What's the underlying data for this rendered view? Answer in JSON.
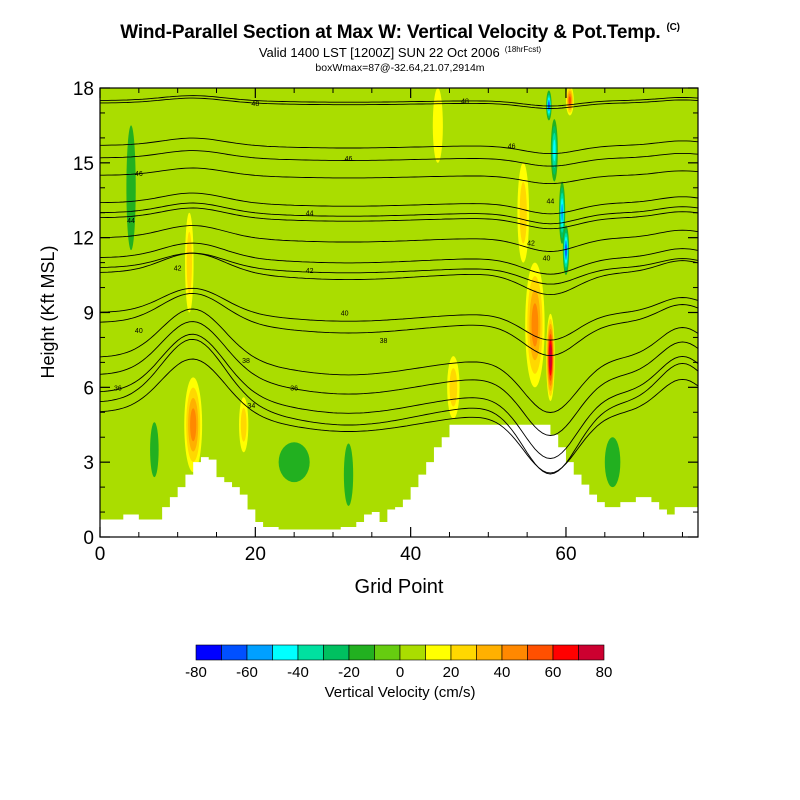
{
  "header": {
    "title": "Wind-Parallel Section at Max W: Vertical Velocity & Pot.Temp.",
    "title_tag": "(C)",
    "subtitle": "Valid 1400 LST [1200Z] SUN 22 Oct 2006",
    "forecast_tag": "(18hrFcst)",
    "subtitle2": "boxWmax=87@-32.64,21.07,2914m"
  },
  "chart_data": {
    "type": "contour-section",
    "xlabel": "Grid Point",
    "ylabel": "Height (Kft MSL)",
    "xlim": [
      0,
      77
    ],
    "ylim": [
      0,
      18
    ],
    "xticks": [
      0,
      20,
      40,
      60
    ],
    "yticks": [
      0,
      3,
      6,
      9,
      12,
      15,
      18
    ],
    "terrain": [
      [
        0,
        0.7
      ],
      [
        2,
        0.7
      ],
      [
        3,
        0.9
      ],
      [
        5,
        0.7
      ],
      [
        7,
        0.7
      ],
      [
        8,
        1.2
      ],
      [
        9,
        1.6
      ],
      [
        10,
        2.0
      ],
      [
        11,
        2.5
      ],
      [
        12,
        3.0
      ],
      [
        13,
        3.2
      ],
      [
        14,
        3.1
      ],
      [
        15,
        2.4
      ],
      [
        16,
        2.2
      ],
      [
        17,
        2.0
      ],
      [
        18,
        1.7
      ],
      [
        19,
        1.1
      ],
      [
        20,
        0.6
      ],
      [
        21,
        0.4
      ],
      [
        23,
        0.3
      ],
      [
        25,
        0.3
      ],
      [
        27,
        0.3
      ],
      [
        29,
        0.3
      ],
      [
        31,
        0.4
      ],
      [
        33,
        0.6
      ],
      [
        34,
        0.9
      ],
      [
        35,
        1.0
      ],
      [
        36,
        0.6
      ],
      [
        37,
        1.1
      ],
      [
        38,
        1.2
      ],
      [
        39,
        1.5
      ],
      [
        40,
        2.0
      ],
      [
        41,
        2.5
      ],
      [
        42,
        3.0
      ],
      [
        43,
        3.6
      ],
      [
        44,
        4.0
      ],
      [
        45,
        4.5
      ],
      [
        46,
        4.5
      ],
      [
        50,
        4.5
      ],
      [
        55,
        4.5
      ],
      [
        57,
        4.5
      ],
      [
        58,
        4.1
      ],
      [
        59,
        3.6
      ],
      [
        60,
        3.0
      ],
      [
        61,
        2.5
      ],
      [
        62,
        2.1
      ],
      [
        63,
        1.7
      ],
      [
        64,
        1.4
      ],
      [
        65,
        1.2
      ],
      [
        67,
        1.4
      ],
      [
        69,
        1.6
      ],
      [
        71,
        1.4
      ],
      [
        72,
        1.1
      ],
      [
        73,
        0.9
      ],
      [
        74,
        1.2
      ],
      [
        75,
        1.2
      ],
      [
        77,
        1.2
      ]
    ],
    "velocity_features": [
      {
        "x": 12,
        "y": 4.5,
        "w": 2.3,
        "h": 3.8,
        "value": 40
      },
      {
        "x": 11.5,
        "y": 11,
        "w": 1.1,
        "h": 4,
        "value": 15
      },
      {
        "x": 18.5,
        "y": 4.5,
        "w": 1.2,
        "h": 2.2,
        "value": 15
      },
      {
        "x": 45.5,
        "y": 6,
        "w": 1.6,
        "h": 2.5,
        "value": 18
      },
      {
        "x": 54.5,
        "y": 13,
        "w": 1.5,
        "h": 4,
        "value": 18
      },
      {
        "x": 56,
        "y": 8.5,
        "w": 2.5,
        "h": 5,
        "value": 35
      },
      {
        "x": 58,
        "y": 7.2,
        "w": 1.1,
        "h": 3.5,
        "value": 75
      },
      {
        "x": 60.5,
        "y": 17.5,
        "w": 1.0,
        "h": 1.2,
        "value": 45
      },
      {
        "x": 43.5,
        "y": 16.5,
        "w": 1.3,
        "h": 3,
        "value": 12
      },
      {
        "x": 57.8,
        "y": 17.3,
        "w": 0.7,
        "h": 1.2,
        "value": -55
      },
      {
        "x": 58.5,
        "y": 15.5,
        "w": 0.9,
        "h": 2.5,
        "value": -40
      },
      {
        "x": 59.5,
        "y": 13,
        "w": 0.8,
        "h": 2.5,
        "value": -45
      },
      {
        "x": 60,
        "y": 11.5,
        "w": 0.8,
        "h": 2,
        "value": -60
      },
      {
        "x": 4,
        "y": 14,
        "w": 1.2,
        "h": 5,
        "value": -8
      },
      {
        "x": 25,
        "y": 3,
        "w": 4,
        "h": 1.6,
        "value": -12
      },
      {
        "x": 32,
        "y": 2.5,
        "w": 1.2,
        "h": 2.5,
        "value": -12
      },
      {
        "x": 66,
        "y": 3,
        "w": 2,
        "h": 2,
        "value": -10
      },
      {
        "x": 7,
        "y": 3.5,
        "w": 1.1,
        "h": 2.2,
        "value": -10
      }
    ],
    "theta_levels": [
      {
        "label": "36",
        "z0": 5.4,
        "amp": 2.6,
        "lx": 2.3,
        "ly": 6.0
      },
      {
        "label": "34",
        "z0": 5.0,
        "amp": 2.2,
        "lx": 19.5,
        "ly": 5.3
      },
      {
        "label": "36",
        "z0": 5.8,
        "amp": 2.4,
        "lx": 25,
        "ly": 6.0
      },
      {
        "label": "38",
        "z0": 6.5,
        "amp": 2.2,
        "lx": 36.5,
        "ly": 7.9
      },
      {
        "label": "38",
        "z0": 7.2,
        "amp": 2.0,
        "lx": 18.8,
        "ly": 7.1
      },
      {
        "label": "40",
        "z0": 8.6,
        "amp": 1.2,
        "lx": 5,
        "ly": 8.3
      },
      {
        "label": "40",
        "z0": 9.0,
        "amp": 1.0,
        "lx": 31.5,
        "ly": 9.0
      },
      {
        "label": "40",
        "z0": 11.2,
        "amp": 0.6,
        "lx": 57.5,
        "ly": 11.2
      },
      {
        "label": "42",
        "z0": 10.6,
        "amp": 0.8,
        "lx": 10,
        "ly": 10.8
      },
      {
        "label": "42",
        "z0": 10.8,
        "amp": 0.6,
        "lx": 27,
        "ly": 10.7
      },
      {
        "label": "42",
        "z0": 12.0,
        "amp": 0.5,
        "lx": 55.5,
        "ly": 11.8
      },
      {
        "label": "44",
        "z0": 12.8,
        "amp": 0.4,
        "lx": 4,
        "ly": 12.7
      },
      {
        "label": "44",
        "z0": 13.0,
        "amp": 0.4,
        "lx": 27,
        "ly": 13.0
      },
      {
        "label": "44",
        "z0": 13.4,
        "amp": 0.4,
        "lx": 58,
        "ly": 13.5
      },
      {
        "label": "46",
        "z0": 14.5,
        "amp": 0.3,
        "lx": 5,
        "ly": 14.6
      },
      {
        "label": "46",
        "z0": 15.2,
        "amp": 0.3,
        "lx": 32,
        "ly": 15.2
      },
      {
        "label": "46",
        "z0": 15.7,
        "amp": 0.3,
        "lx": 53,
        "ly": 15.7
      },
      {
        "label": "48",
        "z0": 17.4,
        "amp": 0.2,
        "lx": 20,
        "ly": 17.4
      },
      {
        "label": "48",
        "z0": 17.5,
        "amp": 0.2,
        "lx": 47,
        "ly": 17.5
      }
    ],
    "colorbar": {
      "label": "Vertical Velocity (cm/s)",
      "tick_labels": [
        "-80",
        "-60",
        "-40",
        "-20",
        "0",
        "20",
        "40",
        "60",
        "80"
      ],
      "colors": [
        "#0000ff",
        "#0050ff",
        "#00a0ff",
        "#00ffff",
        "#00e0a0",
        "#00c060",
        "#22b020",
        "#66cc10",
        "#aadd00",
        "#ffff00",
        "#ffd800",
        "#ffb000",
        "#ff8800",
        "#ff5000",
        "#ff0000",
        "#cc0030"
      ]
    }
  }
}
